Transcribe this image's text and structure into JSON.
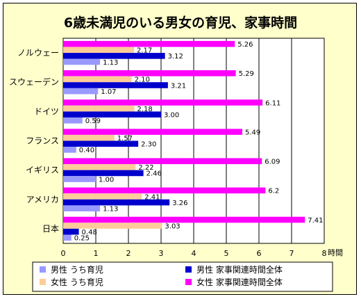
{
  "chart_data": {
    "type": "bar",
    "orientation": "horizontal",
    "title": "6歳未満児のいる男女の育児、家事時間",
    "xlabel": "時間",
    "xlim": [
      0,
      8
    ],
    "xticks": [
      "0",
      "1",
      "2",
      "3",
      "4",
      "5",
      "6",
      "7",
      "8"
    ],
    "grid": true,
    "legend_position": "bottom",
    "categories": [
      "ノルウェー",
      "スウェーデン",
      "ドイツ",
      "フランス",
      "イギリス",
      "アメリカ",
      "日本"
    ],
    "series": [
      {
        "name": "女性 家事関連時間全体",
        "color": "#ff00ff",
        "values": [
          5.26,
          5.29,
          6.11,
          5.49,
          6.09,
          6.2,
          7.41
        ],
        "labels": [
          "5.26",
          "5.29",
          "6.11",
          "5.49",
          "6.09",
          "6.2",
          "7.41"
        ]
      },
      {
        "name": "女性 うち育児",
        "color": "#ffcc99",
        "values": [
          2.17,
          2.1,
          2.18,
          1.57,
          2.22,
          2.41,
          3.03
        ],
        "labels": [
          "2.17",
          "2.10",
          "2.18",
          "1.57",
          "2.22",
          "2.41",
          "3.03"
        ]
      },
      {
        "name": "男性 家事関連時間全体",
        "color": "#0000cc",
        "values": [
          3.12,
          3.21,
          3.0,
          2.3,
          2.46,
          3.26,
          0.48
        ],
        "labels": [
          "3.12",
          "3.21",
          "3.00",
          "2.30",
          "2.46",
          "3.26",
          "0.48"
        ]
      },
      {
        "name": "男性 うち育児",
        "color": "#9999ff",
        "values": [
          1.13,
          1.07,
          0.59,
          0.4,
          1.0,
          1.13,
          0.25
        ],
        "labels": [
          "1.13",
          "1.07",
          "0.59",
          "0.40",
          "1.00",
          "1.13",
          "0.25"
        ]
      }
    ],
    "legend": [
      {
        "name": "男性 うち育児",
        "color": "#9999ff"
      },
      {
        "name": "男性 家事関連時間全体",
        "color": "#0000cc"
      },
      {
        "name": "女性 うち育児",
        "color": "#ffcc99"
      },
      {
        "name": "女性 家事関連時間全体",
        "color": "#ff00ff"
      }
    ]
  }
}
